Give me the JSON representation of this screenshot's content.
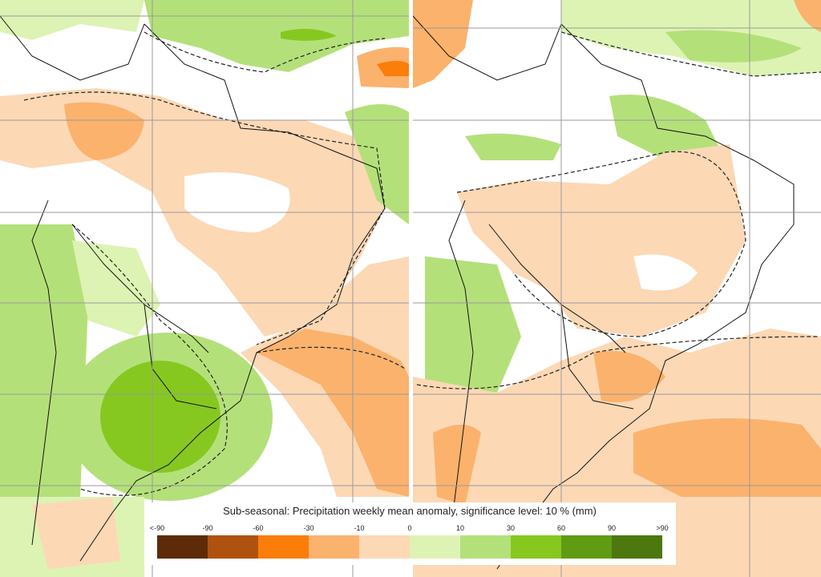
{
  "legend": {
    "title": "Sub-seasonal: Precipitation weekly mean anomaly, significance level: 10 % (mm)",
    "labels": [
      "<-90",
      "-90",
      "-60",
      "-30",
      "-10",
      "0",
      "10",
      "30",
      "60",
      "90",
      ">90"
    ],
    "colors": [
      "#5e2b08",
      "#b0520f",
      "#fb7d0a",
      "#fbb26d",
      "#fcd8b5",
      "#ddf3b3",
      "#b4e07a",
      "#86c81f",
      "#5f9c13",
      "#4c780f"
    ]
  }
}
